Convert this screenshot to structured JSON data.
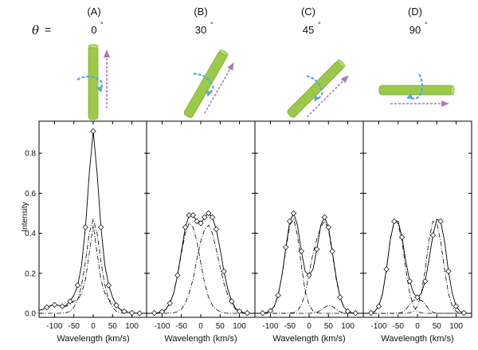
{
  "theta_label": {
    "symbol": "θ",
    "equals": "="
  },
  "panels": [
    {
      "id": "A",
      "letter": "(A)",
      "angle": "0",
      "degree": "°"
    },
    {
      "id": "B",
      "letter": "(B)",
      "angle": "30",
      "degree": "°"
    },
    {
      "id": "C",
      "letter": "(C)",
      "angle": "45",
      "degree": "°"
    },
    {
      "id": "D",
      "letter": "(D)",
      "angle": "90",
      "degree": "°"
    }
  ],
  "diagram": {
    "rotations_deg": [
      0,
      30,
      45,
      90
    ],
    "colors": {
      "tube": "#9cc94a",
      "tube_dark": "#7fab33",
      "circulation_arrow": "#5aa8d8",
      "flow_arrow": "#a87ab8"
    },
    "icons": [
      "tube-icon",
      "circulation-arrow-icon",
      "flow-arrow-icon"
    ]
  },
  "chart_data": {
    "type": "line",
    "ylabel": "Intensity",
    "xlabel": "Wavelength (km/s)",
    "xlim": [
      -140,
      140
    ],
    "ylim": [
      -0.02,
      0.96
    ],
    "xticks": [
      -100,
      -50,
      0,
      50,
      100
    ],
    "xtick_labels": [
      "-100",
      "-50",
      "0",
      "50",
      "100"
    ],
    "yticks": [
      0.0,
      0.2,
      0.4,
      0.6,
      0.8
    ],
    "ytick_labels": [
      "0.0",
      "0.2",
      "0.4",
      "0.6",
      "0.8"
    ],
    "panels": [
      {
        "id": "A",
        "total": {
          "x": [
            -140,
            -130,
            -120,
            -110,
            -100,
            -90,
            -80,
            -70,
            -60,
            -50,
            -40,
            -30,
            -20,
            -10,
            0,
            10,
            20,
            30,
            40,
            50,
            60,
            70,
            80,
            90,
            100,
            110,
            120,
            130,
            140
          ],
          "y": [
            0.015,
            0.02,
            0.03,
            0.038,
            0.042,
            0.04,
            0.035,
            0.04,
            0.06,
            0.09,
            0.14,
            0.24,
            0.43,
            0.7,
            0.91,
            0.7,
            0.43,
            0.24,
            0.14,
            0.08,
            0.04,
            0.02,
            0.01,
            0.005,
            0.002,
            0.001,
            0.0,
            0.0,
            0.0
          ]
        },
        "components": [
          {
            "x": [
              -140,
              -130,
              -120,
              -110,
              -100,
              -90,
              -80,
              -70,
              -60,
              -50,
              -40,
              -30,
              -20,
              -10,
              0,
              10,
              20,
              30,
              40,
              50,
              60,
              70,
              80,
              90,
              100,
              110,
              120,
              130,
              140
            ],
            "y": [
              0.0,
              0.0,
              0.0,
              0.0,
              0.0,
              0.0,
              0.001,
              0.003,
              0.01,
              0.03,
              0.07,
              0.14,
              0.26,
              0.4,
              0.47,
              0.4,
              0.26,
              0.14,
              0.07,
              0.03,
              0.01,
              0.003,
              0.001,
              0.0,
              0.0,
              0.0,
              0.0,
              0.0,
              0.0
            ]
          },
          {
            "x": [
              -140,
              -130,
              -120,
              -110,
              -100,
              -90,
              -80,
              -70,
              -60,
              -50,
              -40,
              -30,
              -20,
              -10,
              0,
              10,
              20,
              30,
              40,
              50,
              60,
              70,
              80,
              90,
              100,
              110,
              120,
              130,
              140
            ],
            "y": [
              0.015,
              0.02,
              0.03,
              0.038,
              0.042,
              0.04,
              0.034,
              0.035,
              0.045,
              0.06,
              0.07,
              0.1,
              0.17,
              0.3,
              0.44,
              0.3,
              0.17,
              0.1,
              0.07,
              0.05,
              0.03,
              0.017,
              0.009,
              0.005,
              0.002,
              0.001,
              0.0,
              0.0,
              0.0
            ]
          }
        ],
        "markers_x": [
          -120,
          -100,
          -80,
          -60,
          -40,
          -20,
          0,
          20,
          40,
          60,
          80,
          100,
          120
        ]
      },
      {
        "id": "B",
        "total": {
          "x": [
            -140,
            -130,
            -120,
            -110,
            -100,
            -90,
            -80,
            -70,
            -60,
            -50,
            -40,
            -30,
            -20,
            -10,
            0,
            10,
            20,
            30,
            40,
            50,
            60,
            70,
            80,
            90,
            100,
            110,
            120,
            130,
            140
          ],
          "y": [
            0.0,
            0.0,
            0.001,
            0.003,
            0.008,
            0.02,
            0.05,
            0.1,
            0.19,
            0.31,
            0.43,
            0.49,
            0.49,
            0.46,
            0.45,
            0.48,
            0.5,
            0.48,
            0.42,
            0.32,
            0.21,
            0.12,
            0.06,
            0.025,
            0.01,
            0.003,
            0.001,
            0.0,
            0.0
          ]
        },
        "components": [
          {
            "x": [
              -140,
              -130,
              -120,
              -110,
              -100,
              -90,
              -80,
              -70,
              -60,
              -50,
              -40,
              -30,
              -20,
              -10,
              0,
              10,
              20,
              30,
              40,
              50,
              60,
              70,
              80,
              90,
              100,
              110,
              120,
              130,
              140
            ],
            "y": [
              0.0,
              0.0,
              0.001,
              0.003,
              0.008,
              0.02,
              0.05,
              0.1,
              0.19,
              0.3,
              0.4,
              0.45,
              0.43,
              0.36,
              0.25,
              0.15,
              0.08,
              0.04,
              0.02,
              0.007,
              0.002,
              0.0,
              0.0,
              0.0,
              0.0,
              0.0,
              0.0,
              0.0,
              0.0
            ]
          },
          {
            "x": [
              -140,
              -130,
              -120,
              -110,
              -100,
              -90,
              -80,
              -70,
              -60,
              -50,
              -40,
              -30,
              -20,
              -10,
              0,
              10,
              20,
              30,
              40,
              50,
              60,
              70,
              80,
              90,
              100,
              110,
              120,
              130,
              140
            ],
            "y": [
              0.0,
              0.0,
              0.0,
              0.0,
              0.0,
              0.0,
              0.001,
              0.003,
              0.008,
              0.02,
              0.05,
              0.1,
              0.17,
              0.27,
              0.36,
              0.42,
              0.44,
              0.4,
              0.32,
              0.23,
              0.15,
              0.09,
              0.05,
              0.02,
              0.008,
              0.003,
              0.001,
              0.0,
              0.0
            ]
          }
        ],
        "markers_x": [
          -120,
          -100,
          -80,
          -60,
          -40,
          -30,
          -20,
          -10,
          0,
          10,
          20,
          30,
          40,
          60,
          80,
          100,
          120
        ]
      },
      {
        "id": "C",
        "total": {
          "x": [
            -140,
            -130,
            -120,
            -110,
            -100,
            -90,
            -80,
            -70,
            -60,
            -50,
            -40,
            -30,
            -20,
            -10,
            0,
            10,
            20,
            30,
            40,
            50,
            60,
            70,
            80,
            90,
            100,
            110,
            120,
            130,
            140
          ],
          "y": [
            0.0,
            0.0,
            0.001,
            0.004,
            0.012,
            0.035,
            0.09,
            0.19,
            0.33,
            0.46,
            0.5,
            0.44,
            0.31,
            0.21,
            0.19,
            0.22,
            0.32,
            0.44,
            0.48,
            0.43,
            0.31,
            0.18,
            0.08,
            0.03,
            0.01,
            0.003,
            0.001,
            0.0,
            0.0
          ]
        },
        "components": [
          {
            "x": [
              -140,
              -130,
              -120,
              -110,
              -100,
              -90,
              -80,
              -70,
              -60,
              -50,
              -40,
              -30,
              -20,
              -10,
              0,
              10,
              20,
              30,
              40,
              50,
              60,
              70,
              80,
              90,
              100,
              110,
              120,
              130,
              140
            ],
            "y": [
              0.0,
              0.0,
              0.001,
              0.004,
              0.012,
              0.035,
              0.09,
              0.19,
              0.32,
              0.44,
              0.47,
              0.39,
              0.24,
              0.11,
              0.04,
              0.012,
              0.003,
              0.0,
              0.0,
              0.0,
              0.0,
              0.0,
              0.0,
              0.0,
              0.0,
              0.0,
              0.0,
              0.0,
              0.0
            ]
          },
          {
            "x": [
              -140,
              -130,
              -120,
              -110,
              -100,
              -90,
              -80,
              -70,
              -60,
              -50,
              -40,
              -30,
              -20,
              -10,
              0,
              10,
              20,
              30,
              40,
              50,
              60,
              70,
              80,
              90,
              100,
              110,
              120,
              130,
              140
            ],
            "y": [
              0.0,
              0.0,
              0.0,
              0.0,
              0.0,
              0.0,
              0.0,
              0.0,
              0.0,
              0.001,
              0.004,
              0.015,
              0.04,
              0.1,
              0.2,
              0.3,
              0.37,
              0.43,
              0.46,
              0.42,
              0.3,
              0.17,
              0.08,
              0.03,
              0.01,
              0.003,
              0.001,
              0.0,
              0.0
            ]
          },
          {
            "x": [
              -140,
              -130,
              -120,
              -110,
              -100,
              -90,
              -80,
              -70,
              -60,
              -50,
              -40,
              -30,
              -20,
              -10,
              0,
              10,
              20,
              30,
              40,
              50,
              60,
              70,
              80,
              90,
              100,
              110,
              120,
              130,
              140
            ],
            "y": [
              0.0,
              0.0,
              0.0,
              0.0,
              0.0,
              0.0,
              0.0,
              0.0,
              0.0,
              0.0,
              0.0,
              0.0,
              0.0,
              0.0,
              0.0,
              0.001,
              0.005,
              0.015,
              0.03,
              0.04,
              0.035,
              0.02,
              0.008,
              0.002,
              0.0,
              0.0,
              0.0,
              0.0,
              0.0
            ]
          }
        ],
        "markers_x": [
          -120,
          -100,
          -80,
          -60,
          -50,
          -40,
          -20,
          0,
          20,
          40,
          50,
          60,
          80,
          100,
          120
        ]
      },
      {
        "id": "D",
        "total": {
          "x": [
            -140,
            -130,
            -120,
            -110,
            -100,
            -90,
            -80,
            -70,
            -60,
            -50,
            -40,
            -30,
            -20,
            -10,
            0,
            10,
            20,
            30,
            40,
            50,
            60,
            70,
            80,
            90,
            100,
            110,
            120,
            130,
            140
          ],
          "y": [
            0.0,
            0.0,
            0.002,
            0.01,
            0.035,
            0.1,
            0.22,
            0.37,
            0.46,
            0.46,
            0.38,
            0.26,
            0.16,
            0.1,
            0.08,
            0.1,
            0.16,
            0.27,
            0.39,
            0.47,
            0.46,
            0.36,
            0.21,
            0.1,
            0.035,
            0.01,
            0.002,
            0.0,
            0.0
          ]
        },
        "components": [
          {
            "x": [
              -140,
              -130,
              -120,
              -110,
              -100,
              -90,
              -80,
              -70,
              -60,
              -50,
              -40,
              -30,
              -20,
              -10,
              0,
              10,
              20,
              30,
              40,
              50,
              60,
              70,
              80,
              90,
              100,
              110,
              120,
              130,
              140
            ],
            "y": [
              0.0,
              0.0,
              0.002,
              0.01,
              0.035,
              0.1,
              0.22,
              0.37,
              0.46,
              0.45,
              0.36,
              0.22,
              0.1,
              0.035,
              0.01,
              0.002,
              0.0,
              0.0,
              0.0,
              0.0,
              0.0,
              0.0,
              0.0,
              0.0,
              0.0,
              0.0,
              0.0,
              0.0,
              0.0
            ]
          },
          {
            "x": [
              -140,
              -130,
              -120,
              -110,
              -100,
              -90,
              -80,
              -70,
              -60,
              -50,
              -40,
              -30,
              -20,
              -10,
              0,
              10,
              20,
              30,
              40,
              50,
              60,
              70,
              80,
              90,
              100,
              110,
              120,
              130,
              140
            ],
            "y": [
              0.0,
              0.0,
              0.0,
              0.0,
              0.0,
              0.0,
              0.0,
              0.0,
              0.0,
              0.0,
              0.0,
              0.0,
              0.002,
              0.01,
              0.035,
              0.1,
              0.22,
              0.37,
              0.46,
              0.45,
              0.36,
              0.22,
              0.1,
              0.035,
              0.01,
              0.002,
              0.0,
              0.0,
              0.0
            ]
          },
          {
            "x": [
              -140,
              -130,
              -120,
              -110,
              -100,
              -90,
              -80,
              -70,
              -60,
              -50,
              -40,
              -30,
              -20,
              -10,
              0,
              10,
              20,
              30,
              40,
              50,
              60,
              70,
              80,
              90,
              100,
              110,
              120,
              130,
              140
            ],
            "y": [
              0.0,
              0.0,
              0.0,
              0.0,
              0.0,
              0.0,
              0.0,
              0.0,
              0.0,
              0.0,
              0.005,
              0.02,
              0.045,
              0.065,
              0.07,
              0.065,
              0.045,
              0.02,
              0.005,
              0.0,
              0.0,
              0.0,
              0.0,
              0.0,
              0.0,
              0.0,
              0.0,
              0.0,
              0.0
            ]
          }
        ],
        "markers_x": [
          -120,
          -100,
          -80,
          -60,
          -40,
          -20,
          0,
          20,
          40,
          60,
          80,
          100,
          120
        ]
      }
    ]
  }
}
